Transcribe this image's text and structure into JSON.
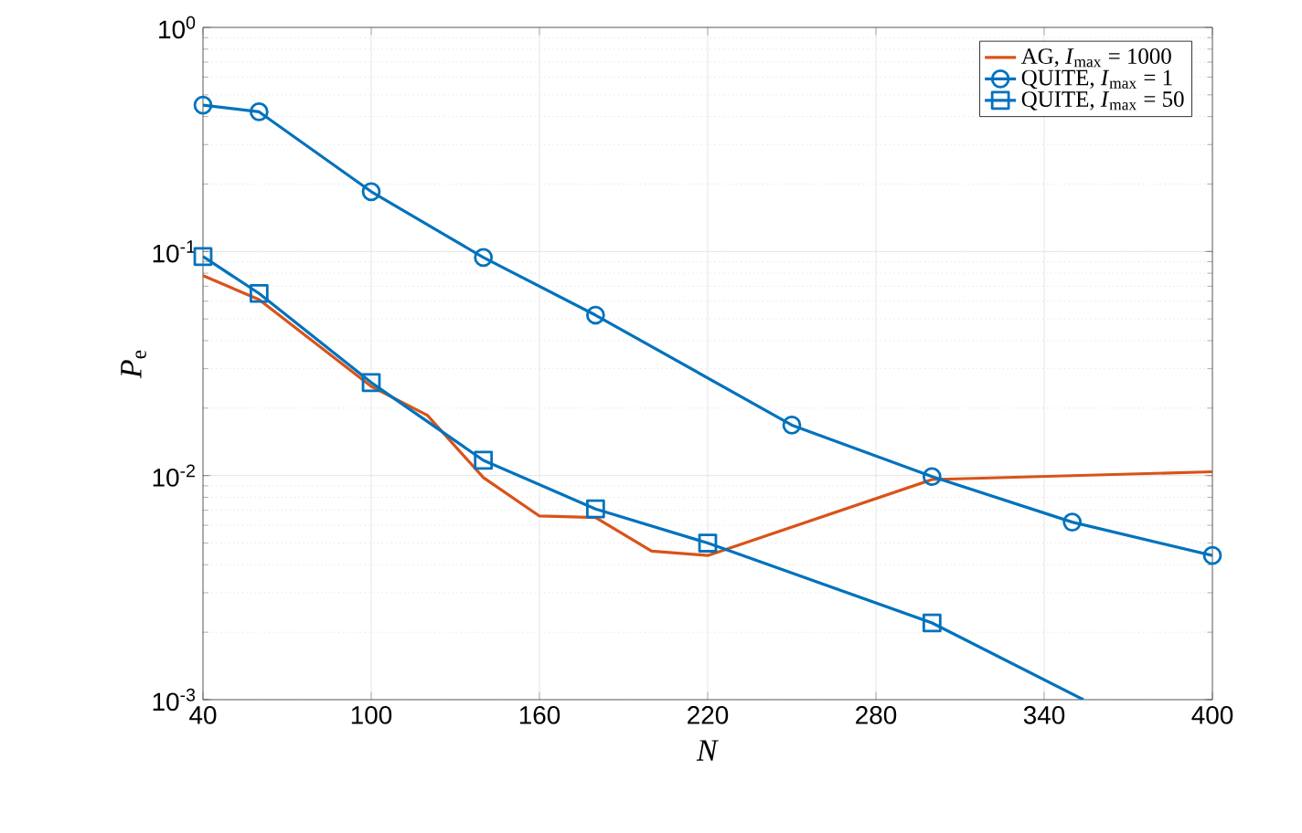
{
  "chart_data": {
    "type": "line",
    "xlabel": "*N*",
    "ylabel": "*P*$_{e}$",
    "log": "y",
    "grid": true,
    "legend": "top right",
    "line_style": "solid",
    "xlim": [
      40,
      400
    ],
    "xticks": [
      40,
      100,
      160,
      220,
      280,
      340,
      400
    ],
    "ylim": [
      0.001,
      1
    ],
    "yticks": [
      {
        "value": 0.001,
        "label": "10$^{-3}$"
      },
      {
        "value": 0.01,
        "label": "10$^{-2}$"
      },
      {
        "value": 0.1,
        "label": "10$^{-1}$"
      },
      {
        "value": 1,
        "label": "10$^{0}$"
      }
    ],
    "series": [
      {
        "name": "AG, *I*$_{max}$ = 1000",
        "color": "#d95319",
        "marker": "none",
        "x": [
          40,
          60,
          100,
          120,
          140,
          160,
          180,
          200,
          220,
          300,
          400
        ],
        "values": [
          0.078,
          0.061,
          0.025,
          0.0186,
          0.0098,
          0.0066,
          0.0065,
          0.0046,
          0.0044,
          0.0096,
          0.0104
        ]
      },
      {
        "name": "QUITE, *I*$_{max}$ = 1",
        "color": "#0072bd",
        "marker": "circle",
        "x": [
          40,
          60,
          100,
          140,
          180,
          250,
          300,
          350,
          400
        ],
        "values": [
          0.45,
          0.42,
          0.185,
          0.094,
          0.052,
          0.0168,
          0.0099,
          0.0062,
          0.0044
        ]
      },
      {
        "name": "QUITE, *I*$_{max}$ = 50",
        "color": "#0072bd",
        "marker": "square",
        "x": [
          40,
          60,
          100,
          140,
          180,
          220,
          300,
          354
        ],
        "values": [
          0.095,
          0.065,
          0.026,
          0.0117,
          0.0071,
          0.005,
          0.0022,
          0.001
        ]
      }
    ]
  }
}
